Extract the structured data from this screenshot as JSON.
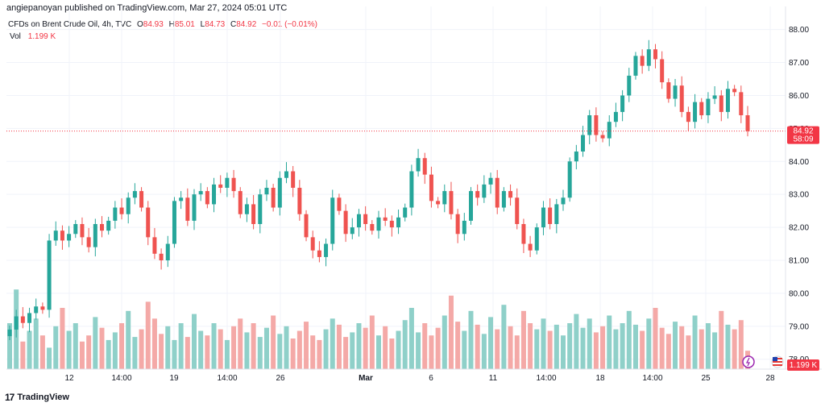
{
  "publisher": "angiepanoyan published on TradingView.com, Mar 27, 2024 05:01 UTC",
  "legend": {
    "symbol": "CFDs on Brent Crude Oil, 4h, TVC",
    "o_label": "O",
    "o": "84.93",
    "h_label": "H",
    "h": "85.01",
    "l_label": "L",
    "l": "84.73",
    "c_label": "C",
    "c": "84.92",
    "change": "−0.01 (−0.01%)",
    "vol_label": "Vol",
    "vol": "1.199 K"
  },
  "price_badge": {
    "price": "84.92",
    "countdown": "58:09"
  },
  "volume_badge": "1.199 K",
  "watermark": "TradingView",
  "colors": {
    "up": "#26a69a",
    "down": "#ef5350",
    "vol_up": "#8fd0c9",
    "vol_down": "#f4a9a7",
    "grid": "#f0f3fa",
    "last_price": "#f23645"
  },
  "chart_data": {
    "type": "candlestick",
    "y_ticks": [
      "78.00",
      "79.00",
      "80.00",
      "81.00",
      "82.00",
      "83.00",
      "84.00",
      "85.00",
      "86.00",
      "87.00",
      "88.00"
    ],
    "ylim": [
      77.7,
      88.7
    ],
    "x_ticks": [
      "12",
      "14:00",
      "19",
      "14:00",
      "26",
      "Mar",
      "6",
      "11",
      "14:00",
      "18",
      "14:00",
      "25",
      "28"
    ],
    "last_price": 84.92,
    "close_path": [
      78.9,
      79.3,
      79.1,
      79.4,
      79.6,
      79.5,
      81.6,
      81.9,
      81.6,
      81.8,
      82.1,
      81.7,
      81.4,
      82.1,
      81.9,
      82.2,
      82.6,
      82.4,
      82.9,
      83.1,
      82.6,
      81.7,
      81.2,
      81.0,
      81.5,
      82.8,
      82.9,
      82.2,
      83.0,
      83.1,
      82.7,
      83.3,
      83.2,
      83.5,
      83.1,
      82.4,
      82.7,
      82.1,
      83.0,
      83.2,
      82.6,
      83.5,
      83.7,
      83.2,
      82.4,
      81.7,
      81.3,
      81.1,
      81.5,
      82.9,
      82.5,
      81.8,
      82.0,
      82.4,
      82.1,
      81.9,
      82.3,
      82.2,
      82.0,
      82.3,
      82.6,
      83.7,
      84.1,
      83.6,
      82.8,
      82.7,
      83.1,
      82.4,
      81.8,
      82.2,
      83.1,
      82.9,
      83.3,
      83.5,
      82.6,
      83.1,
      82.9,
      82.1,
      81.5,
      81.3,
      82.0,
      82.6,
      82.1,
      82.7,
      82.9,
      84.0,
      84.3,
      84.8,
      85.4,
      84.8,
      84.7,
      85.2,
      85.5,
      86.0,
      86.6,
      87.2,
      86.9,
      87.4,
      87.1,
      86.4,
      85.9,
      86.3,
      85.5,
      85.2,
      85.8,
      85.4,
      85.9,
      86.0,
      85.5,
      86.2,
      86.1,
      85.4,
      84.92
    ],
    "vol_path": [
      0.3,
      0.52,
      0.18,
      0.25,
      0.33,
      0.22,
      0.14,
      0.28,
      0.4,
      0.25,
      0.3,
      0.18,
      0.22,
      0.34,
      0.27,
      0.19,
      0.24,
      0.3,
      0.38,
      0.21,
      0.26,
      0.44,
      0.33,
      0.23,
      0.28,
      0.19,
      0.3,
      0.21,
      0.36,
      0.25,
      0.22,
      0.3,
      0.26,
      0.19,
      0.28,
      0.33,
      0.24,
      0.3,
      0.21,
      0.27,
      0.35,
      0.23,
      0.28,
      0.2,
      0.25,
      0.31,
      0.22,
      0.19,
      0.26,
      0.33,
      0.29,
      0.21,
      0.24,
      0.3,
      0.27,
      0.35,
      0.22,
      0.28,
      0.2,
      0.25,
      0.32,
      0.4,
      0.24,
      0.3,
      0.22,
      0.27,
      0.35,
      0.48,
      0.31,
      0.25,
      0.38,
      0.29,
      0.23,
      0.34,
      0.26,
      0.42,
      0.28,
      0.22,
      0.38,
      0.3,
      0.26,
      0.33,
      0.25,
      0.29,
      0.22,
      0.3,
      0.36,
      0.27,
      0.33,
      0.24,
      0.28,
      0.35,
      0.26,
      0.3,
      0.38,
      0.29,
      0.25,
      0.33,
      0.4,
      0.27,
      0.23,
      0.31,
      0.28,
      0.22,
      0.35,
      0.26,
      0.3,
      0.24,
      0.38,
      0.29,
      0.26,
      0.32,
      0.12
    ]
  }
}
